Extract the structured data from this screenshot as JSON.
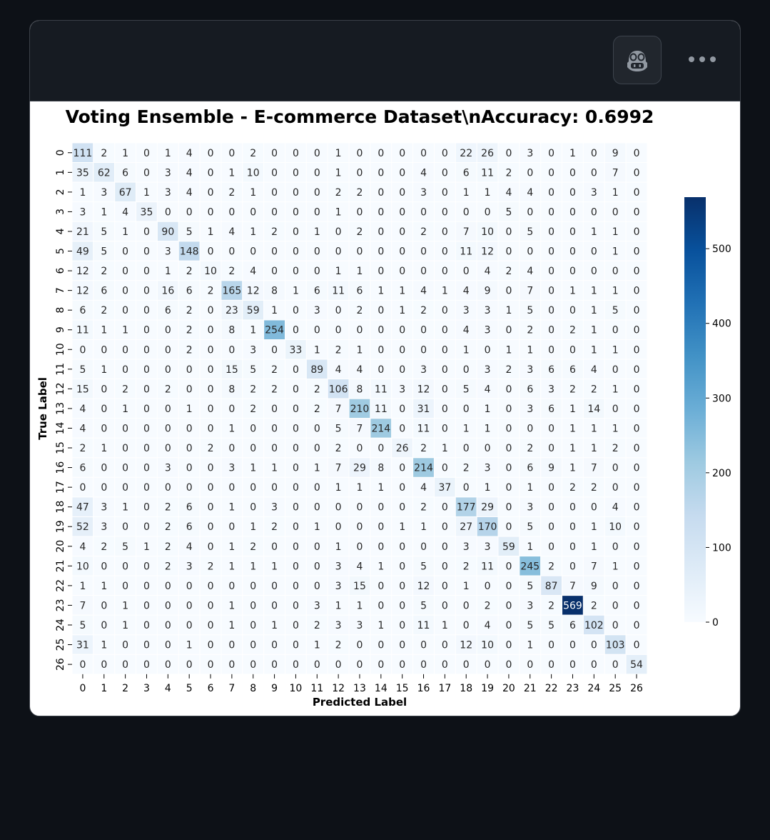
{
  "header": {
    "copilot_icon": "copilot-icon",
    "more_icon": "kebab-horizontal-icon"
  },
  "chart_data": {
    "type": "heatmap",
    "title": "Voting Ensemble - E-commerce Dataset\\nAccuracy: 0.6992",
    "xlabel": "Predicted Label",
    "ylabel": "True Label",
    "colormap": "Blues",
    "color_low": "#f7fbff",
    "color_high": "#08306b",
    "colorbar": {
      "min": 0,
      "max": 569,
      "ticks": [
        0,
        100,
        200,
        300,
        400,
        500
      ]
    },
    "x_labels": [
      "0",
      "1",
      "2",
      "3",
      "4",
      "5",
      "6",
      "7",
      "8",
      "9",
      "10",
      "11",
      "12",
      "13",
      "14",
      "15",
      "16",
      "17",
      "18",
      "19",
      "20",
      "21",
      "22",
      "23",
      "24",
      "25",
      "26"
    ],
    "y_labels": [
      "0",
      "1",
      "2",
      "3",
      "4",
      "5",
      "6",
      "7",
      "8",
      "9",
      "10",
      "11",
      "12",
      "13",
      "14",
      "15",
      "16",
      "17",
      "18",
      "19",
      "20",
      "21",
      "22",
      "23",
      "24",
      "25",
      "26"
    ],
    "matrix": [
      [
        111,
        2,
        1,
        0,
        1,
        4,
        0,
        0,
        2,
        0,
        0,
        0,
        1,
        0,
        0,
        0,
        0,
        0,
        22,
        26,
        0,
        3,
        0,
        1,
        0,
        9,
        0
      ],
      [
        35,
        62,
        6,
        0,
        3,
        4,
        0,
        1,
        10,
        0,
        0,
        0,
        1,
        0,
        0,
        0,
        4,
        0,
        6,
        11,
        2,
        0,
        0,
        0,
        0,
        7,
        0
      ],
      [
        1,
        3,
        67,
        1,
        3,
        4,
        0,
        2,
        1,
        0,
        0,
        0,
        2,
        2,
        0,
        0,
        3,
        0,
        1,
        1,
        4,
        4,
        0,
        0,
        3,
        1,
        0
      ],
      [
        3,
        1,
        4,
        35,
        0,
        0,
        0,
        0,
        0,
        0,
        0,
        0,
        1,
        0,
        0,
        0,
        0,
        0,
        0,
        0,
        5,
        0,
        0,
        0,
        0,
        0,
        0
      ],
      [
        21,
        5,
        1,
        0,
        90,
        5,
        1,
        4,
        1,
        2,
        0,
        1,
        0,
        2,
        0,
        0,
        2,
        0,
        7,
        10,
        0,
        5,
        0,
        0,
        1,
        1,
        0
      ],
      [
        49,
        5,
        0,
        0,
        3,
        148,
        0,
        0,
        0,
        0,
        0,
        0,
        0,
        0,
        0,
        0,
        0,
        0,
        11,
        12,
        0,
        0,
        0,
        0,
        0,
        1,
        0
      ],
      [
        12,
        2,
        0,
        0,
        1,
        2,
        10,
        2,
        4,
        0,
        0,
        0,
        1,
        1,
        0,
        0,
        0,
        0,
        0,
        4,
        2,
        4,
        0,
        0,
        0,
        0,
        0
      ],
      [
        12,
        6,
        0,
        0,
        16,
        6,
        2,
        165,
        12,
        8,
        1,
        6,
        11,
        6,
        1,
        1,
        4,
        1,
        4,
        9,
        0,
        7,
        0,
        1,
        1,
        1,
        0
      ],
      [
        6,
        2,
        0,
        0,
        6,
        2,
        0,
        23,
        59,
        1,
        0,
        3,
        0,
        2,
        0,
        1,
        2,
        0,
        3,
        3,
        1,
        5,
        0,
        0,
        1,
        5,
        0
      ],
      [
        11,
        1,
        1,
        0,
        0,
        2,
        0,
        8,
        1,
        254,
        0,
        0,
        0,
        0,
        0,
        0,
        0,
        0,
        4,
        3,
        0,
        2,
        0,
        2,
        1,
        0,
        0
      ],
      [
        0,
        0,
        0,
        0,
        0,
        2,
        0,
        0,
        3,
        0,
        33,
        1,
        2,
        1,
        0,
        0,
        0,
        0,
        1,
        0,
        1,
        1,
        0,
        0,
        1,
        1,
        0
      ],
      [
        5,
        1,
        0,
        0,
        0,
        0,
        0,
        15,
        5,
        2,
        0,
        89,
        4,
        4,
        0,
        0,
        3,
        0,
        0,
        3,
        2,
        3,
        6,
        6,
        4,
        0,
        0
      ],
      [
        15,
        0,
        2,
        0,
        2,
        0,
        0,
        8,
        2,
        2,
        0,
        2,
        106,
        8,
        11,
        3,
        12,
        0,
        5,
        4,
        0,
        6,
        3,
        2,
        2,
        1,
        0
      ],
      [
        4,
        0,
        1,
        0,
        0,
        1,
        0,
        0,
        2,
        0,
        0,
        2,
        7,
        210,
        11,
        0,
        31,
        0,
        0,
        1,
        0,
        3,
        6,
        1,
        14,
        0,
        0
      ],
      [
        4,
        0,
        0,
        0,
        0,
        0,
        0,
        1,
        0,
        0,
        0,
        0,
        5,
        7,
        214,
        0,
        11,
        0,
        1,
        1,
        0,
        0,
        0,
        1,
        1,
        1,
        0
      ],
      [
        2,
        1,
        0,
        0,
        0,
        0,
        2,
        0,
        0,
        0,
        0,
        0,
        2,
        0,
        0,
        26,
        2,
        1,
        0,
        0,
        0,
        2,
        0,
        1,
        1,
        2,
        0
      ],
      [
        6,
        0,
        0,
        0,
        3,
        0,
        0,
        3,
        1,
        1,
        0,
        1,
        7,
        29,
        8,
        0,
        214,
        0,
        2,
        3,
        0,
        6,
        9,
        1,
        7,
        0,
        0
      ],
      [
        0,
        0,
        0,
        0,
        0,
        0,
        0,
        0,
        0,
        0,
        0,
        0,
        1,
        1,
        1,
        0,
        4,
        37,
        0,
        1,
        0,
        1,
        0,
        2,
        2,
        0,
        0
      ],
      [
        47,
        3,
        1,
        0,
        2,
        6,
        0,
        1,
        0,
        3,
        0,
        0,
        0,
        0,
        0,
        0,
        2,
        0,
        177,
        29,
        0,
        3,
        0,
        0,
        0,
        4,
        0
      ],
      [
        52,
        3,
        0,
        0,
        2,
        6,
        0,
        0,
        1,
        2,
        0,
        1,
        0,
        0,
        0,
        1,
        1,
        0,
        27,
        170,
        0,
        5,
        0,
        0,
        1,
        10,
        0
      ],
      [
        4,
        2,
        5,
        1,
        2,
        4,
        0,
        1,
        2,
        0,
        0,
        0,
        1,
        0,
        0,
        0,
        0,
        0,
        3,
        3,
        59,
        1,
        0,
        0,
        1,
        0,
        0
      ],
      [
        10,
        0,
        0,
        0,
        2,
        3,
        2,
        1,
        1,
        1,
        0,
        0,
        3,
        4,
        1,
        0,
        5,
        0,
        2,
        11,
        0,
        245,
        2,
        0,
        7,
        1,
        0
      ],
      [
        1,
        1,
        0,
        0,
        0,
        0,
        0,
        0,
        0,
        0,
        0,
        0,
        3,
        15,
        0,
        0,
        12,
        0,
        1,
        0,
        0,
        5,
        87,
        7,
        9,
        0,
        0
      ],
      [
        7,
        0,
        1,
        0,
        0,
        0,
        0,
        1,
        0,
        0,
        0,
        3,
        1,
        1,
        0,
        0,
        5,
        0,
        0,
        2,
        0,
        3,
        2,
        569,
        2,
        0,
        0
      ],
      [
        5,
        0,
        1,
        0,
        0,
        0,
        0,
        1,
        0,
        1,
        0,
        2,
        3,
        3,
        1,
        0,
        11,
        1,
        0,
        4,
        0,
        5,
        5,
        6,
        102,
        0,
        0
      ],
      [
        31,
        1,
        0,
        0,
        0,
        1,
        0,
        0,
        0,
        0,
        0,
        1,
        2,
        0,
        0,
        0,
        0,
        0,
        12,
        10,
        0,
        1,
        0,
        0,
        0,
        103,
        0
      ],
      [
        0,
        0,
        0,
        0,
        0,
        0,
        0,
        0,
        0,
        0,
        0,
        0,
        0,
        0,
        0,
        0,
        0,
        0,
        0,
        0,
        0,
        0,
        0,
        0,
        0,
        0,
        54
      ]
    ]
  }
}
